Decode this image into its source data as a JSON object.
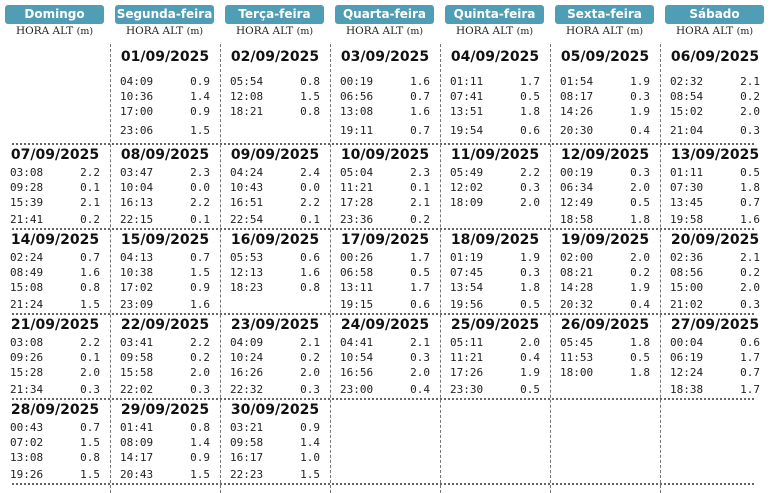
{
  "weekdays": [
    "Domingo",
    "Segunda-feira",
    "Terça-feira",
    "Quarta-feira",
    "Quinta-feira",
    "Sexta-feira",
    "Sábado"
  ],
  "column_header": {
    "label": "HORA ALT",
    "unit": "(m)"
  },
  "days": [
    {
      "date": "01/09/2025",
      "tides": [
        [
          "04:09",
          "0.9"
        ],
        [
          "10:36",
          "1.4"
        ],
        [
          "17:00",
          "0.9"
        ],
        [
          "23:06",
          "1.5"
        ]
      ]
    },
    {
      "date": "02/09/2025",
      "tides": [
        [
          "05:54",
          "0.8"
        ],
        [
          "12:08",
          "1.5"
        ],
        [
          "18:21",
          "0.8"
        ]
      ]
    },
    {
      "date": "03/09/2025",
      "tides": [
        [
          "00:19",
          "1.6"
        ],
        [
          "06:56",
          "0.7"
        ],
        [
          "13:08",
          "1.6"
        ],
        [
          "19:11",
          "0.7"
        ]
      ]
    },
    {
      "date": "04/09/2025",
      "tides": [
        [
          "01:11",
          "1.7"
        ],
        [
          "07:41",
          "0.5"
        ],
        [
          "13:51",
          "1.8"
        ],
        [
          "19:54",
          "0.6"
        ]
      ]
    },
    {
      "date": "05/09/2025",
      "tides": [
        [
          "01:54",
          "1.9"
        ],
        [
          "08:17",
          "0.3"
        ],
        [
          "14:26",
          "1.9"
        ],
        [
          "20:30",
          "0.4"
        ]
      ]
    },
    {
      "date": "06/09/2025",
      "tides": [
        [
          "02:32",
          "2.1"
        ],
        [
          "08:54",
          "0.2"
        ],
        [
          "15:02",
          "2.0"
        ],
        [
          "21:04",
          "0.3"
        ]
      ]
    },
    {
      "date": "07/09/2025",
      "tides": [
        [
          "03:08",
          "2.2"
        ],
        [
          "09:28",
          "0.1"
        ],
        [
          "15:39",
          "2.1"
        ],
        [
          "21:41",
          "0.2"
        ]
      ]
    },
    {
      "date": "08/09/2025",
      "tides": [
        [
          "03:47",
          "2.3"
        ],
        [
          "10:04",
          "0.0"
        ],
        [
          "16:13",
          "2.2"
        ],
        [
          "22:15",
          "0.1"
        ]
      ]
    },
    {
      "date": "09/09/2025",
      "tides": [
        [
          "04:24",
          "2.4"
        ],
        [
          "10:43",
          "0.0"
        ],
        [
          "16:51",
          "2.2"
        ],
        [
          "22:54",
          "0.1"
        ]
      ]
    },
    {
      "date": "10/09/2025",
      "tides": [
        [
          "05:04",
          "2.3"
        ],
        [
          "11:21",
          "0.1"
        ],
        [
          "17:28",
          "2.1"
        ],
        [
          "23:36",
          "0.2"
        ]
      ]
    },
    {
      "date": "11/09/2025",
      "tides": [
        [
          "05:49",
          "2.2"
        ],
        [
          "12:02",
          "0.3"
        ],
        [
          "18:09",
          "2.0"
        ]
      ]
    },
    {
      "date": "12/09/2025",
      "tides": [
        [
          "00:19",
          "0.3"
        ],
        [
          "06:34",
          "2.0"
        ],
        [
          "12:49",
          "0.5"
        ],
        [
          "18:58",
          "1.8"
        ]
      ]
    },
    {
      "date": "13/09/2025",
      "tides": [
        [
          "01:11",
          "0.5"
        ],
        [
          "07:30",
          "1.8"
        ],
        [
          "13:45",
          "0.7"
        ],
        [
          "19:58",
          "1.6"
        ]
      ]
    },
    {
      "date": "14/09/2025",
      "tides": [
        [
          "02:24",
          "0.7"
        ],
        [
          "08:49",
          "1.6"
        ],
        [
          "15:08",
          "0.8"
        ],
        [
          "21:24",
          "1.5"
        ]
      ]
    },
    {
      "date": "15/09/2025",
      "tides": [
        [
          "04:13",
          "0.7"
        ],
        [
          "10:38",
          "1.5"
        ],
        [
          "17:02",
          "0.9"
        ],
        [
          "23:09",
          "1.6"
        ]
      ]
    },
    {
      "date": "16/09/2025",
      "tides": [
        [
          "05:53",
          "0.6"
        ],
        [
          "12:13",
          "1.6"
        ],
        [
          "18:23",
          "0.8"
        ]
      ]
    },
    {
      "date": "17/09/2025",
      "tides": [
        [
          "00:26",
          "1.7"
        ],
        [
          "06:58",
          "0.5"
        ],
        [
          "13:11",
          "1.7"
        ],
        [
          "19:15",
          "0.6"
        ]
      ]
    },
    {
      "date": "18/09/2025",
      "tides": [
        [
          "01:19",
          "1.9"
        ],
        [
          "07:45",
          "0.3"
        ],
        [
          "13:54",
          "1.8"
        ],
        [
          "19:56",
          "0.5"
        ]
      ]
    },
    {
      "date": "19/09/2025",
      "tides": [
        [
          "02:00",
          "2.0"
        ],
        [
          "08:21",
          "0.2"
        ],
        [
          "14:28",
          "1.9"
        ],
        [
          "20:32",
          "0.4"
        ]
      ]
    },
    {
      "date": "20/09/2025",
      "tides": [
        [
          "02:36",
          "2.1"
        ],
        [
          "08:56",
          "0.2"
        ],
        [
          "15:00",
          "2.0"
        ],
        [
          "21:02",
          "0.3"
        ]
      ]
    },
    {
      "date": "21/09/2025",
      "tides": [
        [
          "03:08",
          "2.2"
        ],
        [
          "09:26",
          "0.1"
        ],
        [
          "15:28",
          "2.0"
        ],
        [
          "21:34",
          "0.3"
        ]
      ]
    },
    {
      "date": "22/09/2025",
      "tides": [
        [
          "03:41",
          "2.2"
        ],
        [
          "09:58",
          "0.2"
        ],
        [
          "15:58",
          "2.0"
        ],
        [
          "22:02",
          "0.3"
        ]
      ]
    },
    {
      "date": "23/09/2025",
      "tides": [
        [
          "04:09",
          "2.1"
        ],
        [
          "10:24",
          "0.2"
        ],
        [
          "16:26",
          "2.0"
        ],
        [
          "22:32",
          "0.3"
        ]
      ]
    },
    {
      "date": "24/09/2025",
      "tides": [
        [
          "04:41",
          "2.1"
        ],
        [
          "10:54",
          "0.3"
        ],
        [
          "16:56",
          "2.0"
        ],
        [
          "23:00",
          "0.4"
        ]
      ]
    },
    {
      "date": "25/09/2025",
      "tides": [
        [
          "05:11",
          "2.0"
        ],
        [
          "11:21",
          "0.4"
        ],
        [
          "17:26",
          "1.9"
        ],
        [
          "23:30",
          "0.5"
        ]
      ]
    },
    {
      "date": "26/09/2025",
      "tides": [
        [
          "05:45",
          "1.8"
        ],
        [
          "11:53",
          "0.5"
        ],
        [
          "18:00",
          "1.8"
        ]
      ]
    },
    {
      "date": "27/09/2025",
      "tides": [
        [
          "00:04",
          "0.6"
        ],
        [
          "06:19",
          "1.7"
        ],
        [
          "12:24",
          "0.7"
        ],
        [
          "18:38",
          "1.7"
        ]
      ]
    },
    {
      "date": "28/09/2025",
      "tides": [
        [
          "00:43",
          "0.7"
        ],
        [
          "07:02",
          "1.5"
        ],
        [
          "13:08",
          "0.8"
        ],
        [
          "19:26",
          "1.5"
        ]
      ]
    },
    {
      "date": "29/09/2025",
      "tides": [
        [
          "01:41",
          "0.8"
        ],
        [
          "08:09",
          "1.4"
        ],
        [
          "14:17",
          "0.9"
        ],
        [
          "20:43",
          "1.5"
        ]
      ]
    },
    {
      "date": "30/09/2025",
      "tides": [
        [
          "03:21",
          "0.9"
        ],
        [
          "09:58",
          "1.4"
        ],
        [
          "16:17",
          "1.0"
        ],
        [
          "22:23",
          "1.5"
        ]
      ]
    }
  ],
  "first_weekday_index": 1,
  "colors": {
    "header_bg": "#4f9eb6",
    "header_text": "#ffffff",
    "rule": "#666666"
  }
}
